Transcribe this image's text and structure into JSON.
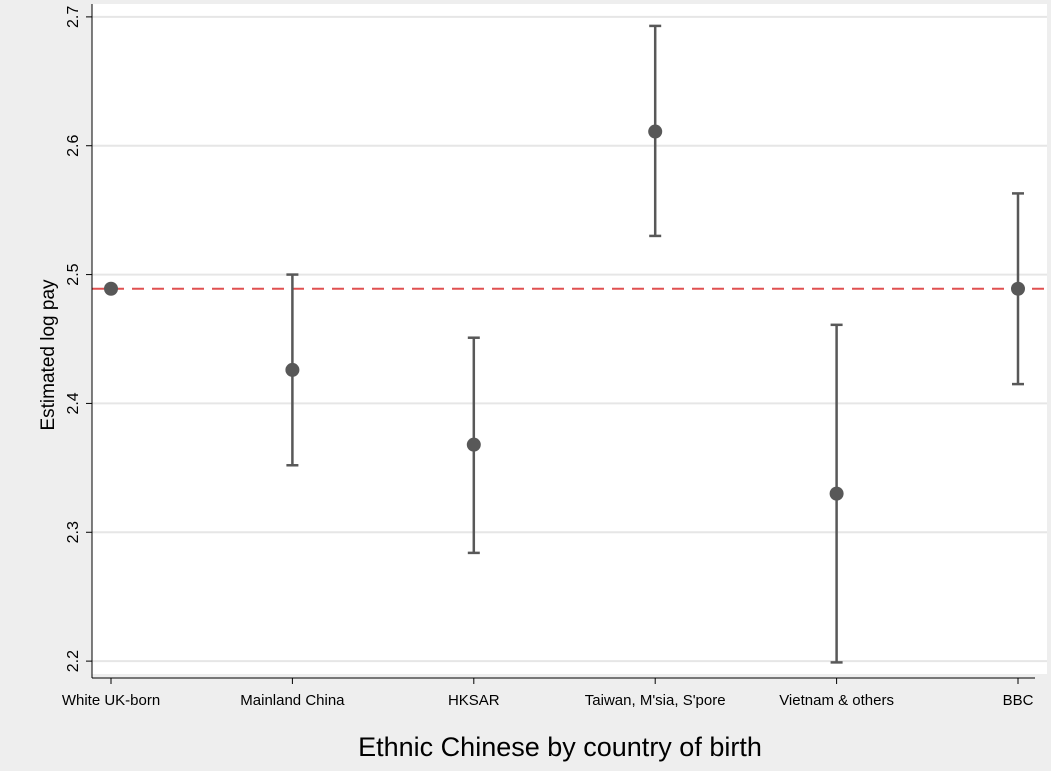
{
  "chart_data": {
    "type": "scatter",
    "subtype": "point-estimates-with-confidence-intervals",
    "xlabel": "Ethnic Chinese by country of birth",
    "ylabel": "Estimated log pay",
    "categories": [
      "White UK-born",
      "Mainland China",
      "HKSAR",
      "Taiwan, M'sia, S'pore",
      "Vietnam & others",
      "BBC"
    ],
    "estimates": [
      2.489,
      2.426,
      2.368,
      2.611,
      2.33,
      2.489
    ],
    "ci_low": [
      null,
      2.352,
      2.284,
      2.53,
      2.199,
      2.415
    ],
    "ci_high": [
      null,
      2.5,
      2.451,
      2.693,
      2.461,
      2.563
    ],
    "ylim": [
      2.19,
      2.71
    ],
    "yticks": [
      "2.2",
      "2.3",
      "2.4",
      "2.5",
      "2.6",
      "2.7"
    ],
    "reference_line": {
      "y": 2.489,
      "style": "dashed",
      "color": "#e05050"
    },
    "grid": true,
    "colors": {
      "marker": "#585858",
      "errorbar": "#585858",
      "background": "#eeeeee",
      "plot_area": "#ffffff",
      "gridline": "#e6e6e6"
    }
  }
}
